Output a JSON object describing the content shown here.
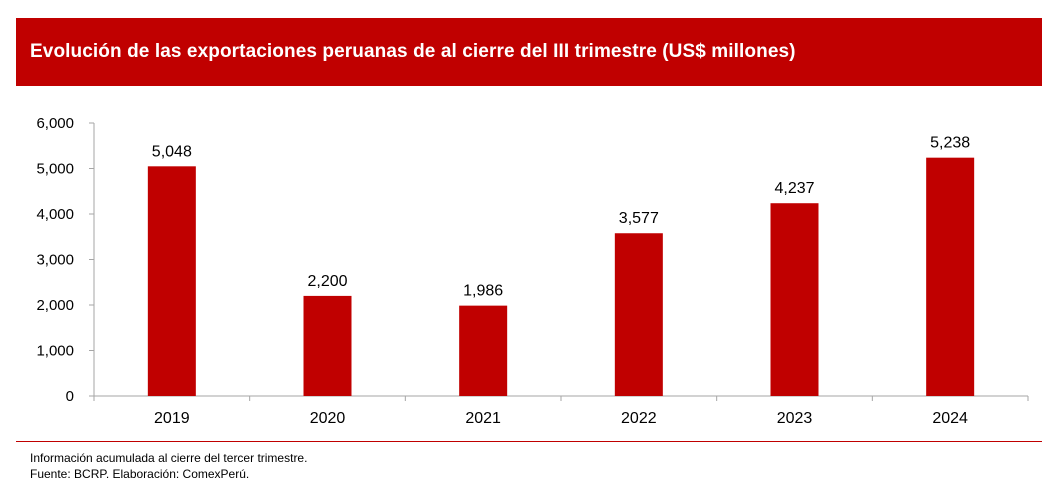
{
  "header": {
    "title": "Evolución de las exportaciones peruanas de al cierre del III trimestre (US$ millones)"
  },
  "footer": {
    "note": "Información acumulada al cierre del tercer trimestre.",
    "source": "Fuente: BCRP. Elaboración: ComexPerú."
  },
  "colors": {
    "brand": "#c00000",
    "bar": "#c00000",
    "axis": "#a6a6a6",
    "text": "#000000"
  },
  "chart_data": {
    "type": "bar",
    "title": "Evolución de las exportaciones peruanas de al cierre del III trimestre (US$ millones)",
    "xlabel": "",
    "ylabel": "",
    "categories": [
      "2019",
      "2020",
      "2021",
      "2022",
      "2023",
      "2024"
    ],
    "values": [
      5048,
      2200,
      1986,
      3577,
      4237,
      5238
    ],
    "value_labels": [
      "5,048",
      "2,200",
      "1,986",
      "3,577",
      "4,237",
      "5,238"
    ],
    "ylim": [
      0,
      6000
    ],
    "yticks": [
      0,
      1000,
      2000,
      3000,
      4000,
      5000,
      6000
    ],
    "ytick_labels": [
      "0",
      "1,000",
      "2,000",
      "3,000",
      "4,000",
      "5,000",
      "6,000"
    ],
    "grid": false,
    "legend": "none"
  }
}
